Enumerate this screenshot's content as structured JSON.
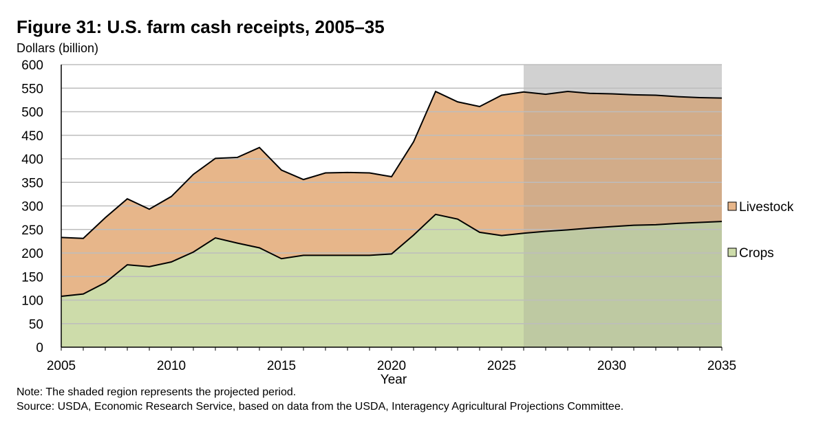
{
  "chart_data": {
    "type": "area",
    "stacked": true,
    "title": "Figure 31: U.S. farm cash receipts, 2005–35",
    "ylabel": "Dollars (billion)",
    "xlabel": "Year",
    "ylim": [
      0,
      600
    ],
    "xlim": [
      2005,
      2035
    ],
    "yticks": [
      0,
      50,
      100,
      150,
      200,
      250,
      300,
      350,
      400,
      450,
      500,
      550,
      600
    ],
    "xticks": [
      2005,
      2010,
      2015,
      2020,
      2025,
      2030,
      2035
    ],
    "grid": true,
    "x": [
      2005,
      2006,
      2007,
      2008,
      2009,
      2010,
      2011,
      2012,
      2013,
      2014,
      2015,
      2016,
      2017,
      2018,
      2019,
      2020,
      2021,
      2022,
      2023,
      2024,
      2025,
      2026,
      2027,
      2028,
      2029,
      2030,
      2031,
      2032,
      2033,
      2034,
      2035
    ],
    "series": [
      {
        "name": "Crops",
        "color": "#cddcaa",
        "values": [
          108,
          113,
          137,
          175,
          171,
          181,
          202,
          232,
          221,
          211,
          188,
          195,
          195,
          195,
          195,
          198,
          238,
          282,
          272,
          244,
          237,
          242,
          246,
          249,
          253,
          256,
          259,
          260,
          263,
          265,
          267
        ]
      },
      {
        "name": "Livestock",
        "color": "#e7b68a",
        "values": [
          125,
          118,
          138,
          140,
          122,
          139,
          165,
          169,
          182,
          213,
          188,
          161,
          175,
          176,
          175,
          164,
          198,
          261,
          249,
          267,
          298,
          300,
          291,
          294,
          286,
          282,
          277,
          275,
          269,
          265,
          262
        ]
      }
    ],
    "projection_start": 2026,
    "projection_end": 2035,
    "legend": [
      "Livestock",
      "Crops"
    ],
    "legend_position": "right",
    "note": "Note: The shaded region represents the projected period.",
    "source": "Source: USDA, Economic Research Service, based on data from the USDA, Interagency Agricultural Projections Committee."
  }
}
